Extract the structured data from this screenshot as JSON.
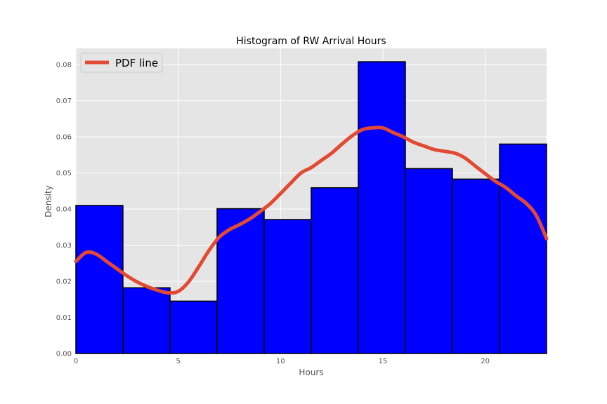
{
  "chart_data": {
    "type": "bar",
    "title": "Histogram of RW Arrival Hours",
    "xlabel": "Hours",
    "ylabel": "Density",
    "xlim": [
      0,
      23
    ],
    "ylim": [
      0,
      0.0845
    ],
    "xticks": [
      0,
      5,
      10,
      15,
      20
    ],
    "xtick_labels": [
      "0",
      "5",
      "10",
      "15",
      "20"
    ],
    "yticks": [
      0,
      0.01,
      0.02,
      0.03,
      0.04,
      0.05,
      0.06,
      0.07,
      0.08
    ],
    "ytick_labels": [
      "0.00",
      "0.01",
      "0.02",
      "0.03",
      "0.04",
      "0.05",
      "0.06",
      "0.07",
      "0.08"
    ],
    "grid": true,
    "legend_position": "top-left",
    "bin_edges": [
      0,
      2.3,
      4.6,
      6.9,
      9.2,
      11.5,
      13.8,
      16.1,
      18.4,
      20.7,
      23
    ],
    "values": [
      0.041,
      0.0182,
      0.0145,
      0.0401,
      0.0371,
      0.0459,
      0.0808,
      0.0512,
      0.0483,
      0.058
    ],
    "bar_color": "#0000ff",
    "bar_edge_color": "#000000",
    "series": [
      {
        "name": "PDF line",
        "type": "line",
        "color": "#e24a33",
        "x": [
          0,
          0.5,
          1.0,
          1.5,
          2.0,
          2.5,
          3.0,
          3.5,
          4.0,
          4.5,
          5.0,
          5.5,
          6.0,
          6.5,
          7.0,
          7.5,
          8.0,
          8.5,
          9.0,
          9.5,
          10.0,
          10.5,
          11.0,
          11.5,
          12.0,
          12.5,
          13.0,
          13.5,
          14.0,
          14.5,
          15.0,
          15.5,
          16.0,
          16.5,
          17.0,
          17.5,
          18.0,
          18.5,
          19.0,
          19.5,
          20.0,
          20.5,
          21.0,
          21.5,
          22.0,
          22.5,
          23.0
        ],
        "y": [
          0.0255,
          0.028,
          0.0275,
          0.0255,
          0.0235,
          0.0215,
          0.0198,
          0.0185,
          0.0175,
          0.0168,
          0.0172,
          0.0198,
          0.024,
          0.0285,
          0.0322,
          0.0343,
          0.0357,
          0.0373,
          0.0393,
          0.0415,
          0.0443,
          0.0472,
          0.05,
          0.0515,
          0.0535,
          0.0555,
          0.058,
          0.0603,
          0.062,
          0.0625,
          0.0625,
          0.0612,
          0.06,
          0.0585,
          0.0575,
          0.0565,
          0.056,
          0.0555,
          0.0542,
          0.052,
          0.0498,
          0.0477,
          0.046,
          0.0437,
          0.0416,
          0.0382,
          0.0318
        ]
      }
    ]
  }
}
